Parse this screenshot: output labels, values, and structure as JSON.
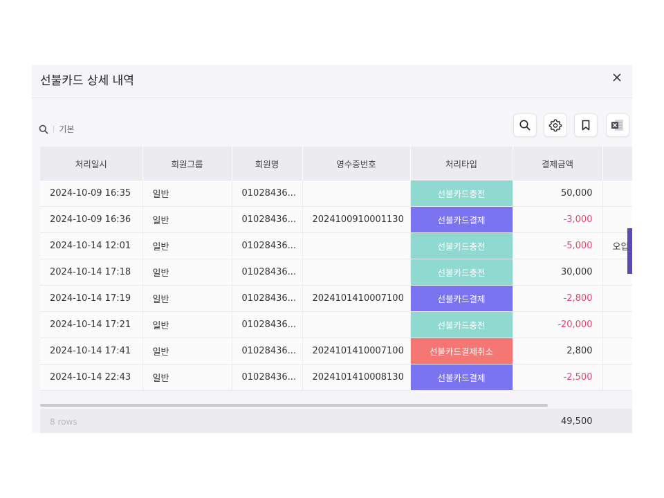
{
  "modal": {
    "title": "선불카드 상세 내역",
    "close_icon": "close-icon"
  },
  "toolbar": {
    "search_label": "기본",
    "buttons": [
      "search-icon",
      "gear-icon",
      "bookmark-icon",
      "excel-icon"
    ]
  },
  "table": {
    "columns": [
      "처리일시",
      "회원그룹",
      "회원명",
      "영수증번호",
      "처리타입",
      "결제금액",
      ""
    ],
    "rows": [
      {
        "date": "2024-10-09 16:35",
        "group": "일반",
        "member": "01028436...",
        "receipt": "",
        "type": "선불카드충전",
        "amount": "50,000",
        "extra": ""
      },
      {
        "date": "2024-10-09 16:36",
        "group": "일반",
        "member": "01028436...",
        "receipt": "2024100910001130",
        "type": "선불카드결제",
        "amount": "-3,000",
        "extra": ""
      },
      {
        "date": "2024-10-14 12:01",
        "group": "일반",
        "member": "01028436...",
        "receipt": "",
        "type": "선불카드충전",
        "amount": "-5,000",
        "extra": "오입"
      },
      {
        "date": "2024-10-14 17:18",
        "group": "일반",
        "member": "01028436...",
        "receipt": "",
        "type": "선불카드충전",
        "amount": "30,000",
        "extra": ""
      },
      {
        "date": "2024-10-14 17:19",
        "group": "일반",
        "member": "01028436...",
        "receipt": "2024101410007100",
        "type": "선불카드결제",
        "amount": "-2,800",
        "extra": ""
      },
      {
        "date": "2024-10-14 17:21",
        "group": "일반",
        "member": "01028436...",
        "receipt": "",
        "type": "선불카드충전",
        "amount": "-20,000",
        "extra": ""
      },
      {
        "date": "2024-10-14 17:41",
        "group": "일반",
        "member": "01028436...",
        "receipt": "2024101410007100",
        "type": "선불카드결제취소",
        "amount": "2,800",
        "extra": ""
      },
      {
        "date": "2024-10-14 22:43",
        "group": "일반",
        "member": "01028436...",
        "receipt": "2024101410008130",
        "type": "선불카드결제",
        "amount": "-2,500",
        "extra": ""
      }
    ],
    "footer": {
      "rows_label": "8 rows",
      "total": "49,500"
    }
  },
  "colors": {
    "charge": "#8fd9d1",
    "payment": "#7a74f0",
    "cancel": "#f47774",
    "negative": "#e8426a"
  }
}
